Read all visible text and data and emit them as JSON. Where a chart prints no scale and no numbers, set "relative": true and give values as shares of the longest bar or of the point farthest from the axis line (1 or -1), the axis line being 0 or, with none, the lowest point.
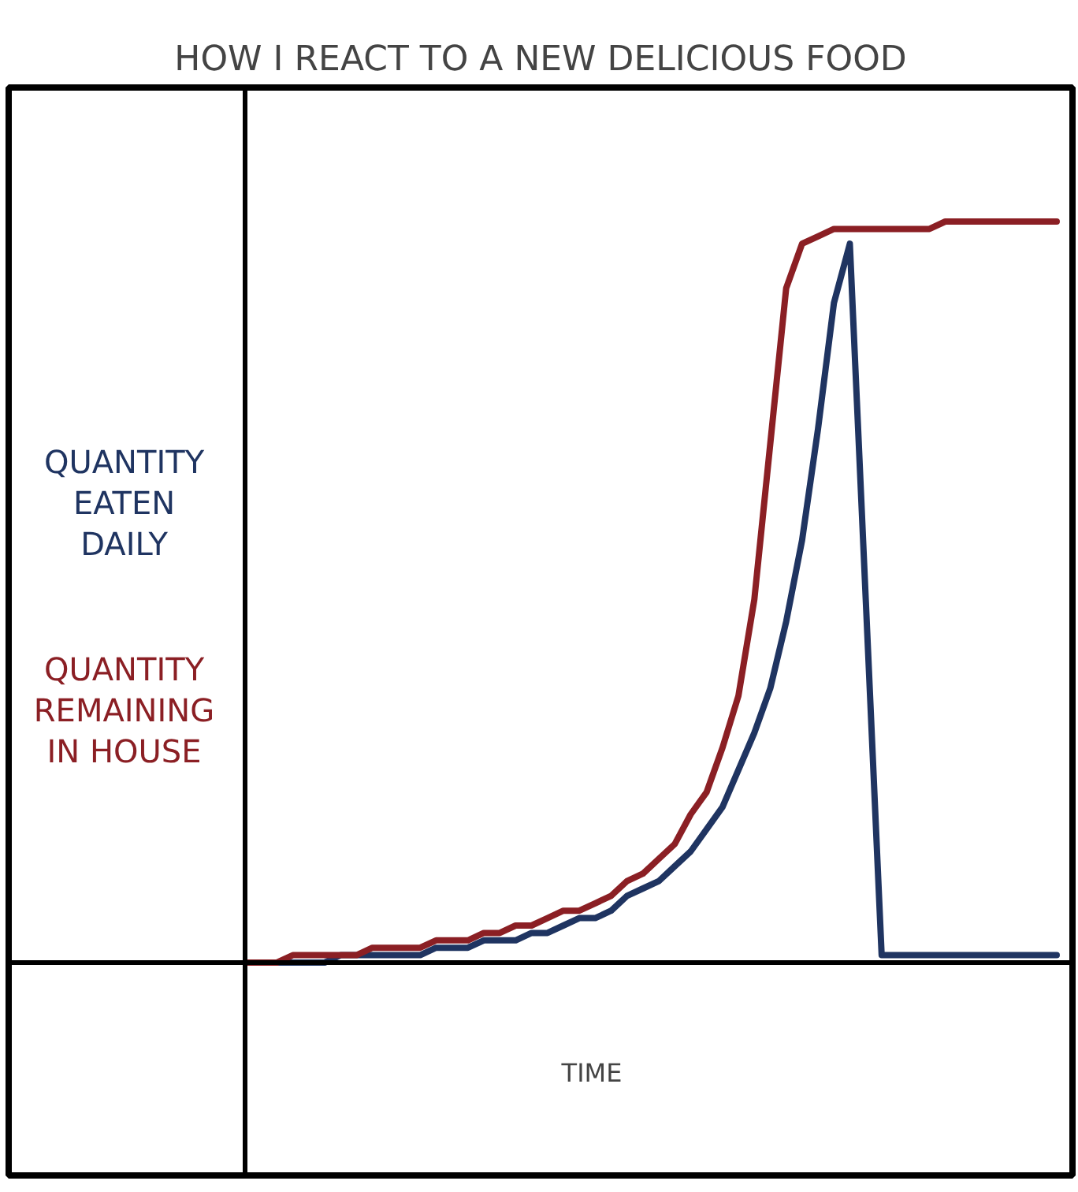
{
  "chart_data": {
    "type": "line",
    "title": "HOW I REACT TO A NEW DELICIOUS FOOD",
    "xlabel": "TIME",
    "relative": true,
    "categories": [
      null,
      null,
      null,
      null,
      null,
      null,
      null,
      null,
      null,
      null,
      null,
      null,
      null,
      null,
      null,
      null,
      null,
      null,
      null,
      null,
      null,
      null,
      null,
      null,
      null,
      null,
      null,
      null,
      null,
      null,
      null,
      null,
      null,
      null,
      null,
      null,
      null,
      null,
      null,
      null,
      null,
      null,
      null,
      null,
      null,
      null,
      null,
      null,
      null,
      null,
      null,
      null
    ],
    "series": [
      {
        "name": "QUANTITY EATEN DAILY",
        "color": "#1f3461",
        "values": [
          0,
          0,
          0,
          0,
          0,
          0,
          0.01,
          0.01,
          0.01,
          0.01,
          0.01,
          0.01,
          0.02,
          0.02,
          0.02,
          0.03,
          0.03,
          0.03,
          0.04,
          0.04,
          0.05,
          0.06,
          0.06,
          0.07,
          0.09,
          0.1,
          0.11,
          0.13,
          0.15,
          0.18,
          0.21,
          0.26,
          0.31,
          0.37,
          0.46,
          0.57,
          0.72,
          0.89,
          0.97,
          0.49,
          0.01,
          0.01,
          0.01,
          0.01,
          0.01,
          0.01,
          0.01,
          0.01,
          0.01,
          0.01,
          0.01,
          0.01
        ]
      },
      {
        "name": "QUANTITY REMAINING IN HOUSE",
        "color": "#8b1f24",
        "values": [
          0,
          0,
          0,
          0.01,
          0.01,
          0.01,
          0.01,
          0.01,
          0.02,
          0.02,
          0.02,
          0.02,
          0.03,
          0.03,
          0.03,
          0.04,
          0.04,
          0.05,
          0.05,
          0.06,
          0.07,
          0.07,
          0.08,
          0.09,
          0.11,
          0.12,
          0.14,
          0.16,
          0.2,
          0.23,
          0.29,
          0.36,
          0.49,
          0.7,
          0.91,
          0.97,
          0.98,
          0.99,
          0.99,
          0.99,
          0.99,
          0.99,
          0.99,
          0.99,
          1,
          1,
          1,
          1,
          1,
          1,
          1,
          1
        ]
      }
    ]
  }
}
